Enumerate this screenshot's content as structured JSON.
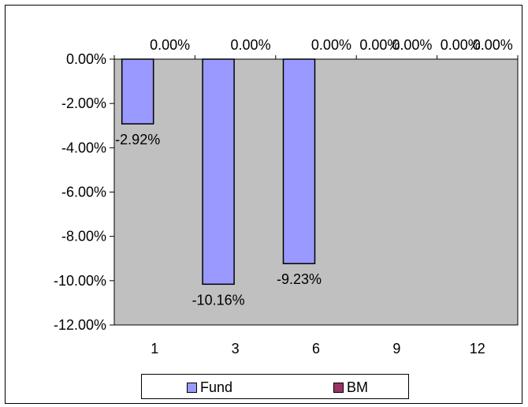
{
  "chart_data": {
    "type": "bar",
    "categories": [
      "1",
      "3",
      "6",
      "9",
      "12"
    ],
    "series": [
      {
        "name": "Fund",
        "values": [
          -2.92,
          -10.16,
          -9.23,
          0,
          0
        ],
        "labels": [
          "-2.92%",
          "-10.16%",
          "-9.23%",
          "0.00%",
          "0.00%"
        ],
        "color": "#9999ff"
      },
      {
        "name": "BM",
        "values": [
          0,
          0,
          0,
          0,
          0
        ],
        "labels": [
          "0.00%",
          "0.00%",
          "0.00%",
          "0.00%",
          "0.00%"
        ],
        "color": "#993366"
      }
    ],
    "yticks": [
      "0.00%",
      "-2.00%",
      "-4.00%",
      "-6.00%",
      "-8.00%",
      "-10.00%",
      "-12.00%"
    ],
    "ylim": [
      -12,
      0
    ],
    "plot_background": "#c0c0c0",
    "legend_position": "bottom"
  }
}
